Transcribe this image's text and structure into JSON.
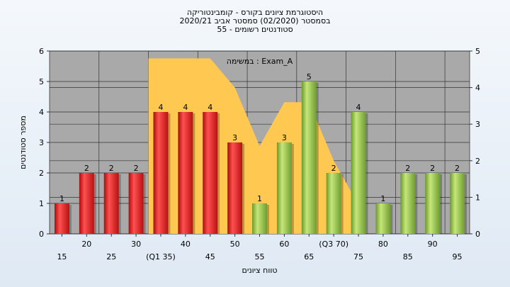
{
  "chart_data": {
    "type": "bar",
    "title_lines": [
      "היסטוגרמת ציונים בקורס - קומבינטוריקה",
      "בסמסטר  (02/2020)  סמסטר אביב 2020/21",
      "55 - סטודנטים רשומים"
    ],
    "legend_label": "במשימה : Exam_A",
    "xlabel": "טווח ציונים",
    "ylabel": "מספר סטודנטים",
    "ylim": [
      0,
      6
    ],
    "yticks": [
      0,
      1,
      2,
      3,
      4,
      5,
      6
    ],
    "y2lim": [
      0,
      5
    ],
    "y2ticks": [
      0,
      1,
      2,
      3,
      4,
      5
    ],
    "categories": [
      "15",
      "20",
      "25",
      "30",
      "(Q1 35)",
      "40",
      "45",
      "50",
      "55",
      "60",
      "65",
      "(Q3 70)",
      "75",
      "80",
      "85",
      "90",
      "95"
    ],
    "values": [
      1,
      2,
      2,
      2,
      4,
      4,
      4,
      3,
      1,
      3,
      5,
      2,
      4,
      1,
      2,
      2,
      2
    ],
    "bar_groups": [
      "red",
      "red",
      "red",
      "red",
      "red",
      "red",
      "red",
      "red",
      "green",
      "green",
      "green",
      "green",
      "green",
      "green",
      "green",
      "green",
      "green"
    ],
    "area_x_index": [
      4,
      5,
      6,
      7,
      8,
      9,
      10,
      11,
      12
    ],
    "area_values": [
      4.8,
      4.8,
      4.8,
      4.0,
      2.4,
      3.6,
      3.6,
      2.0,
      0.8
    ],
    "colors": {
      "red_bar": "#e02020",
      "green_bar": "#8fc040",
      "area": "#ffc850",
      "plot_bg": "#a9a9a9"
    },
    "grid": true
  }
}
